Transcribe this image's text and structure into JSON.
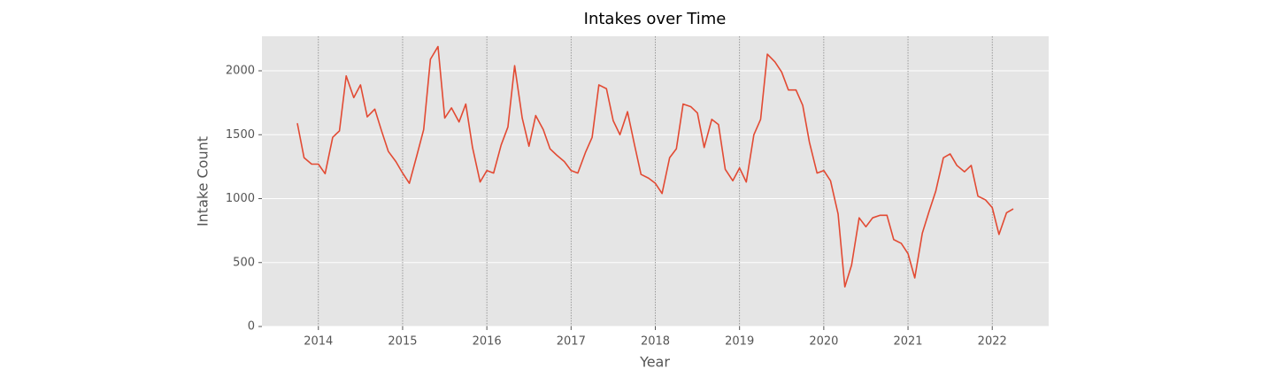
{
  "chart_data": {
    "type": "line",
    "title": "Intakes over Time",
    "x_label": "Year",
    "y_label": "Intake Count",
    "x": [
      2013.75,
      2013.83,
      2013.92,
      2014.0,
      2014.08,
      2014.17,
      2014.25,
      2014.33,
      2014.42,
      2014.5,
      2014.58,
      2014.67,
      2014.75,
      2014.83,
      2014.92,
      2015.0,
      2015.08,
      2015.17,
      2015.25,
      2015.33,
      2015.42,
      2015.5,
      2015.58,
      2015.67,
      2015.75,
      2015.83,
      2015.92,
      2016.0,
      2016.08,
      2016.17,
      2016.25,
      2016.33,
      2016.42,
      2016.5,
      2016.58,
      2016.67,
      2016.75,
      2016.83,
      2016.92,
      2017.0,
      2017.08,
      2017.17,
      2017.25,
      2017.33,
      2017.42,
      2017.5,
      2017.58,
      2017.67,
      2017.75,
      2017.83,
      2017.92,
      2018.0,
      2018.08,
      2018.17,
      2018.25,
      2018.33,
      2018.42,
      2018.5,
      2018.58,
      2018.67,
      2018.75,
      2018.83,
      2018.92,
      2019.0,
      2019.08,
      2019.17,
      2019.25,
      2019.33,
      2019.42,
      2019.5,
      2019.58,
      2019.67,
      2019.75,
      2019.83,
      2019.92,
      2020.0,
      2020.08,
      2020.17,
      2020.25,
      2020.33,
      2020.42,
      2020.5,
      2020.58,
      2020.67,
      2020.75,
      2020.83,
      2020.92,
      2021.0,
      2021.08,
      2021.17,
      2021.25,
      2021.33,
      2021.42,
      2021.5,
      2021.58,
      2021.67,
      2021.75,
      2021.83,
      2021.92,
      2022.0,
      2022.08,
      2022.17,
      2022.25
    ],
    "series": [
      {
        "name": "Intakes",
        "color": "#e24a33",
        "values": [
          1590,
          1320,
          1270,
          1270,
          1195,
          1480,
          1530,
          1960,
          1790,
          1890,
          1640,
          1700,
          1530,
          1370,
          1290,
          1200,
          1120,
          1340,
          1540,
          2090,
          2190,
          1630,
          1710,
          1600,
          1740,
          1400,
          1130,
          1220,
          1200,
          1420,
          1560,
          2040,
          1630,
          1410,
          1650,
          1540,
          1390,
          1340,
          1290,
          1220,
          1200,
          1360,
          1480,
          1890,
          1860,
          1610,
          1500,
          1680,
          1430,
          1190,
          1160,
          1120,
          1040,
          1320,
          1390,
          1740,
          1720,
          1670,
          1400,
          1620,
          1580,
          1230,
          1140,
          1240,
          1130,
          1500,
          1620,
          2130,
          2070,
          1990,
          1850,
          1850,
          1730,
          1440,
          1200,
          1220,
          1140,
          880,
          310,
          480,
          850,
          780,
          850,
          870,
          870,
          680,
          650,
          570,
          380,
          730,
          900,
          1060,
          1320,
          1350,
          1260,
          1210,
          1260,
          1020,
          990,
          930,
          720,
          890,
          920
        ]
      }
    ],
    "xlim": [
      2013.33,
      2022.67
    ],
    "xticks": [
      2014,
      2015,
      2016,
      2017,
      2018,
      2019,
      2020,
      2021,
      2022
    ],
    "ylim": [
      0,
      2270
    ],
    "yticks": [
      0,
      500,
      1000,
      1500,
      2000
    ],
    "grid": true
  }
}
